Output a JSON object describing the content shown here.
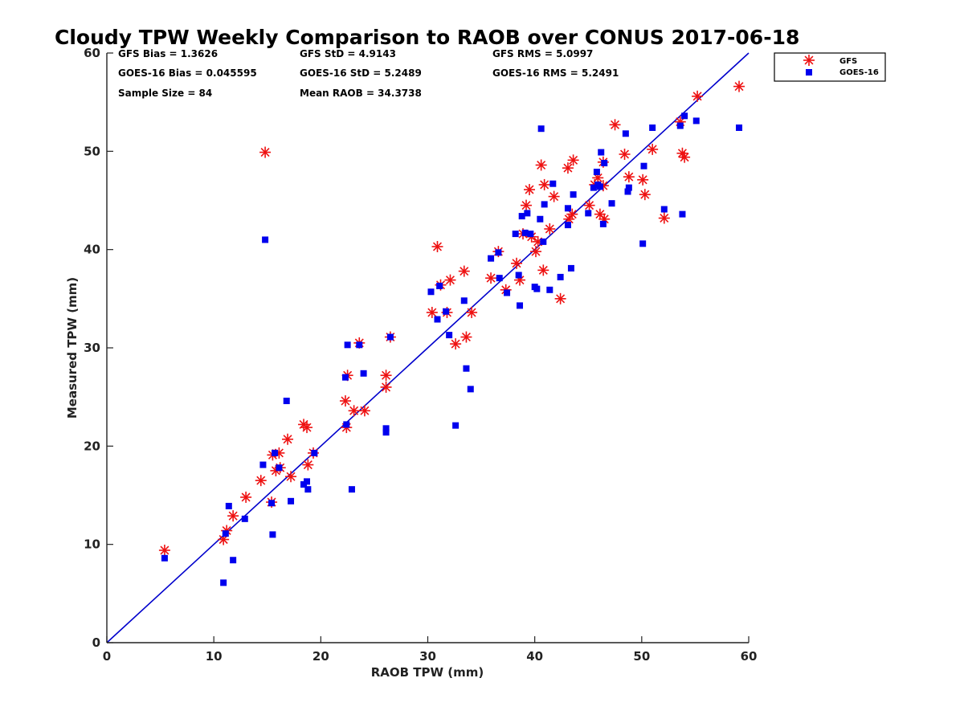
{
  "chart_data": {
    "type": "scatter",
    "title": "Cloudy TPW Weekly Comparison to RAOB over CONUS 2017-06-18",
    "xlabel": "RAOB TPW (mm)",
    "ylabel": "Measured TPW (mm)",
    "xlim": [
      0,
      60
    ],
    "ylim": [
      0,
      60
    ],
    "xticks": [
      0,
      10,
      20,
      30,
      40,
      50,
      60
    ],
    "yticks": [
      0,
      10,
      20,
      30,
      40,
      50,
      60
    ],
    "grid": false,
    "legend_position": "outside-top-right",
    "one_to_one_line": {
      "color": "#0000cc"
    },
    "stats": [
      {
        "label": "GFS Bias = 1.3626"
      },
      {
        "label": "GFS StD = 4.9143"
      },
      {
        "label": "GFS RMS = 5.0997"
      },
      {
        "label": "GOES-16 Bias = 0.045595"
      },
      {
        "label": "GOES-16 StD = 5.2489"
      },
      {
        "label": "GOES-16 RMS = 5.2491"
      },
      {
        "label": "Sample Size = 84"
      },
      {
        "label": "Mean RAOB = 34.3738"
      }
    ],
    "series": [
      {
        "name": "GFS",
        "marker": "asterisk",
        "color": "#ee1111",
        "points": [
          [
            5.4,
            9.4
          ],
          [
            10.9,
            10.5
          ],
          [
            11.2,
            11.4
          ],
          [
            11.8,
            12.9
          ],
          [
            13.0,
            14.8
          ],
          [
            14.4,
            16.5
          ],
          [
            15.4,
            14.3
          ],
          [
            15.5,
            19.1
          ],
          [
            15.8,
            17.5
          ],
          [
            16.1,
            19.3
          ],
          [
            16.2,
            17.8
          ],
          [
            16.9,
            20.7
          ],
          [
            17.2,
            16.9
          ],
          [
            18.4,
            22.2
          ],
          [
            18.7,
            21.9
          ],
          [
            18.8,
            18.1
          ],
          [
            19.3,
            19.3
          ],
          [
            22.3,
            24.6
          ],
          [
            22.4,
            21.9
          ],
          [
            22.5,
            27.2
          ],
          [
            23.1,
            23.6
          ],
          [
            23.6,
            30.5
          ],
          [
            24.1,
            23.6
          ],
          [
            26.1,
            26.0
          ],
          [
            26.1,
            27.2
          ],
          [
            26.5,
            31.1
          ],
          [
            14.8,
            49.9
          ],
          [
            30.4,
            33.6
          ],
          [
            30.9,
            40.3
          ],
          [
            31.2,
            36.4
          ],
          [
            31.8,
            33.6
          ],
          [
            32.1,
            36.9
          ],
          [
            32.6,
            30.4
          ],
          [
            33.4,
            37.8
          ],
          [
            33.6,
            31.1
          ],
          [
            34.1,
            33.6
          ],
          [
            35.9,
            37.1
          ],
          [
            36.6,
            39.8
          ],
          [
            37.3,
            35.9
          ],
          [
            38.3,
            38.6
          ],
          [
            38.6,
            36.9
          ],
          [
            38.9,
            41.6
          ],
          [
            39.2,
            44.5
          ],
          [
            39.5,
            46.1
          ],
          [
            39.7,
            41.3
          ],
          [
            40.1,
            39.8
          ],
          [
            40.3,
            40.8
          ],
          [
            40.6,
            48.6
          ],
          [
            40.8,
            37.9
          ],
          [
            40.9,
            46.6
          ],
          [
            41.4,
            42.1
          ],
          [
            41.8,
            45.4
          ],
          [
            42.4,
            35.0
          ],
          [
            43.1,
            48.3
          ],
          [
            43.2,
            43.1
          ],
          [
            43.5,
            43.6
          ],
          [
            43.6,
            49.1
          ],
          [
            45.1,
            44.5
          ],
          [
            45.6,
            46.6
          ],
          [
            45.9,
            47.3
          ],
          [
            46.1,
            43.6
          ],
          [
            46.4,
            46.5
          ],
          [
            46.4,
            48.9
          ],
          [
            46.5,
            43.1
          ],
          [
            47.5,
            52.7
          ],
          [
            48.4,
            49.7
          ],
          [
            48.8,
            47.4
          ],
          [
            50.1,
            47.1
          ],
          [
            50.3,
            45.6
          ],
          [
            51.0,
            50.2
          ],
          [
            52.1,
            43.2
          ],
          [
            53.6,
            53.0
          ],
          [
            53.8,
            49.8
          ],
          [
            54.0,
            49.4
          ],
          [
            55.2,
            55.6
          ],
          [
            59.1,
            56.6
          ]
        ]
      },
      {
        "name": "GOES-16",
        "marker": "square",
        "color": "#0000ee",
        "points": [
          [
            5.4,
            8.6
          ],
          [
            10.9,
            6.1
          ],
          [
            11.1,
            11.1
          ],
          [
            11.4,
            13.9
          ],
          [
            11.8,
            8.4
          ],
          [
            12.9,
            12.6
          ],
          [
            14.6,
            18.1
          ],
          [
            14.8,
            41.0
          ],
          [
            15.4,
            14.2
          ],
          [
            15.5,
            11.0
          ],
          [
            15.7,
            19.3
          ],
          [
            16.1,
            17.8
          ],
          [
            16.8,
            24.6
          ],
          [
            17.2,
            14.4
          ],
          [
            18.4,
            16.1
          ],
          [
            18.7,
            16.4
          ],
          [
            18.8,
            15.6
          ],
          [
            19.4,
            19.3
          ],
          [
            22.3,
            27.0
          ],
          [
            22.4,
            22.2
          ],
          [
            22.5,
            30.3
          ],
          [
            22.9,
            15.6
          ],
          [
            23.6,
            30.3
          ],
          [
            24.0,
            27.4
          ],
          [
            26.1,
            21.8
          ],
          [
            26.1,
            21.4
          ],
          [
            26.5,
            31.1
          ],
          [
            30.3,
            35.7
          ],
          [
            30.9,
            32.9
          ],
          [
            31.1,
            36.3
          ],
          [
            31.7,
            33.7
          ],
          [
            32.0,
            31.3
          ],
          [
            32.6,
            22.1
          ],
          [
            33.4,
            34.8
          ],
          [
            33.6,
            27.9
          ],
          [
            34.0,
            25.8
          ],
          [
            35.9,
            39.1
          ],
          [
            36.6,
            39.7
          ],
          [
            36.7,
            37.1
          ],
          [
            37.4,
            35.6
          ],
          [
            38.2,
            41.6
          ],
          [
            38.5,
            37.4
          ],
          [
            38.6,
            34.3
          ],
          [
            38.8,
            43.4
          ],
          [
            39.1,
            41.7
          ],
          [
            39.3,
            43.7
          ],
          [
            39.6,
            41.6
          ],
          [
            40.0,
            36.2
          ],
          [
            40.2,
            36.0
          ],
          [
            40.5,
            43.1
          ],
          [
            40.6,
            52.3
          ],
          [
            40.8,
            40.8
          ],
          [
            40.9,
            44.6
          ],
          [
            41.4,
            35.9
          ],
          [
            41.7,
            46.7
          ],
          [
            42.4,
            37.2
          ],
          [
            43.1,
            42.5
          ],
          [
            43.1,
            44.2
          ],
          [
            43.4,
            38.1
          ],
          [
            43.6,
            45.6
          ],
          [
            45.0,
            43.7
          ],
          [
            45.5,
            46.3
          ],
          [
            45.8,
            47.9
          ],
          [
            45.9,
            46.6
          ],
          [
            46.1,
            46.4
          ],
          [
            46.2,
            49.9
          ],
          [
            46.4,
            42.6
          ],
          [
            46.5,
            48.8
          ],
          [
            47.2,
            44.7
          ],
          [
            48.5,
            51.8
          ],
          [
            48.7,
            45.9
          ],
          [
            48.8,
            46.3
          ],
          [
            50.1,
            40.6
          ],
          [
            50.2,
            48.5
          ],
          [
            51.0,
            52.4
          ],
          [
            52.1,
            44.1
          ],
          [
            53.6,
            52.6
          ],
          [
            53.8,
            43.6
          ],
          [
            54.0,
            53.6
          ],
          [
            55.1,
            53.1
          ],
          [
            59.1,
            52.4
          ]
        ]
      }
    ]
  }
}
